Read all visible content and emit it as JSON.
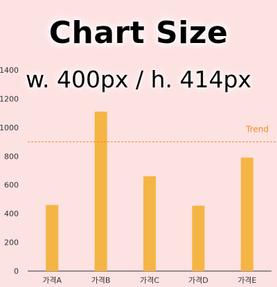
{
  "overlay": {
    "line1": "Chart Size",
    "line2": "w. 400px / h. 414px"
  },
  "colors": {
    "background": "#fde2e2",
    "bar": "#f4b544",
    "trend": "#f08a24",
    "axis": "#333333",
    "tick_text": "#333333"
  },
  "chart_data": {
    "type": "bar",
    "categories": [
      "가격A",
      "가격B",
      "가격C",
      "가격D",
      "가격E"
    ],
    "values": [
      460,
      1110,
      660,
      455,
      790
    ],
    "ylim": [
      0,
      1400
    ],
    "yticks": [
      0,
      200,
      400,
      600,
      800,
      1000,
      1200,
      1400
    ],
    "grid": false,
    "reference_line": {
      "label": "Trend",
      "value": 900,
      "style": "dashed"
    },
    "title": "",
    "xlabel": "",
    "ylabel": ""
  }
}
